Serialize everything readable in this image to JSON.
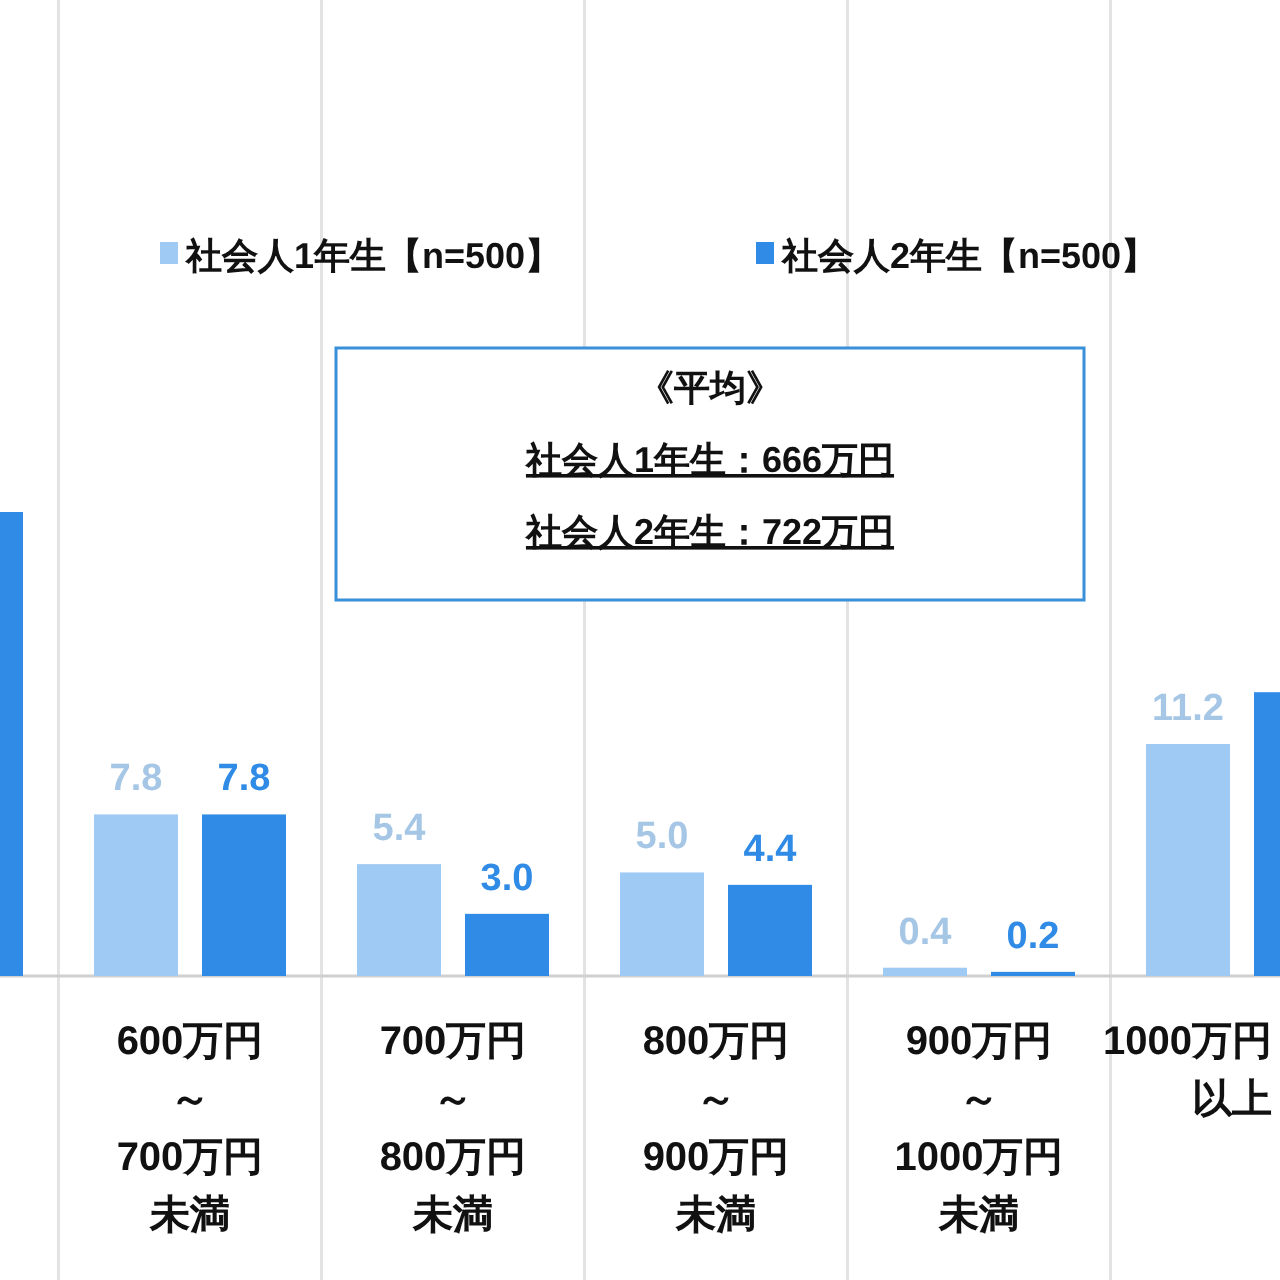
{
  "chart_data": {
    "type": "bar",
    "categories": [
      null,
      "600万円～700万円未満",
      "700万円～800万円未満",
      "800万円～900万円未満",
      "900万円～1000万円未満",
      "1000万円以上"
    ],
    "series": [
      {
        "name": "社会人1年生【n=500】",
        "color": "#9fcaf4",
        "values": [
          null,
          7.8,
          5.4,
          5.0,
          0.4,
          11.2
        ],
        "value_labels": [
          null,
          "7.8",
          "5.4",
          "5.0",
          "0.4",
          "11.2"
        ]
      },
      {
        "name": "社会人2年生【n=500】",
        "color": "#2f8be6",
        "values": [
          22.4,
          7.8,
          3.0,
          4.4,
          0.2,
          13.7
        ],
        "value_labels": [
          null,
          "7.8",
          "3.0",
          "4.4",
          "0.2",
          null
        ]
      }
    ],
    "annotations": [
      "《平均》",
      "社会人1年生：666万円",
      "社会人2年生：722万円"
    ],
    "legend": "top",
    "grid": "x"
  }
}
